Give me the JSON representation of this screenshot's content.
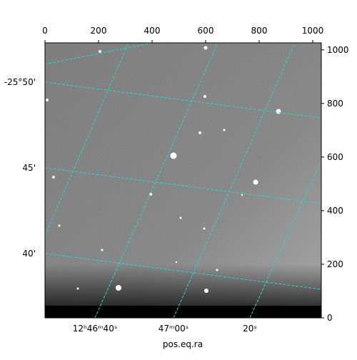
{
  "chart_data": {
    "type": "image",
    "x_label": "pos.eq.ra",
    "xlim": [
      0,
      1032
    ],
    "xticks": [
      0,
      200,
      400,
      600,
      800,
      1000
    ],
    "ylim": [
      0,
      1026
    ],
    "yticks": [
      0,
      200,
      400,
      600,
      800,
      1000
    ],
    "dec_labels": [
      "-25°50'",
      "45'",
      "40'"
    ],
    "ra_labels": [
      "12ʰ46ᵐ40ˢ",
      "47ᵐ00ˢ",
      "20ˢ"
    ],
    "grid": true,
    "grid_color": "#2ad4d4"
  }
}
